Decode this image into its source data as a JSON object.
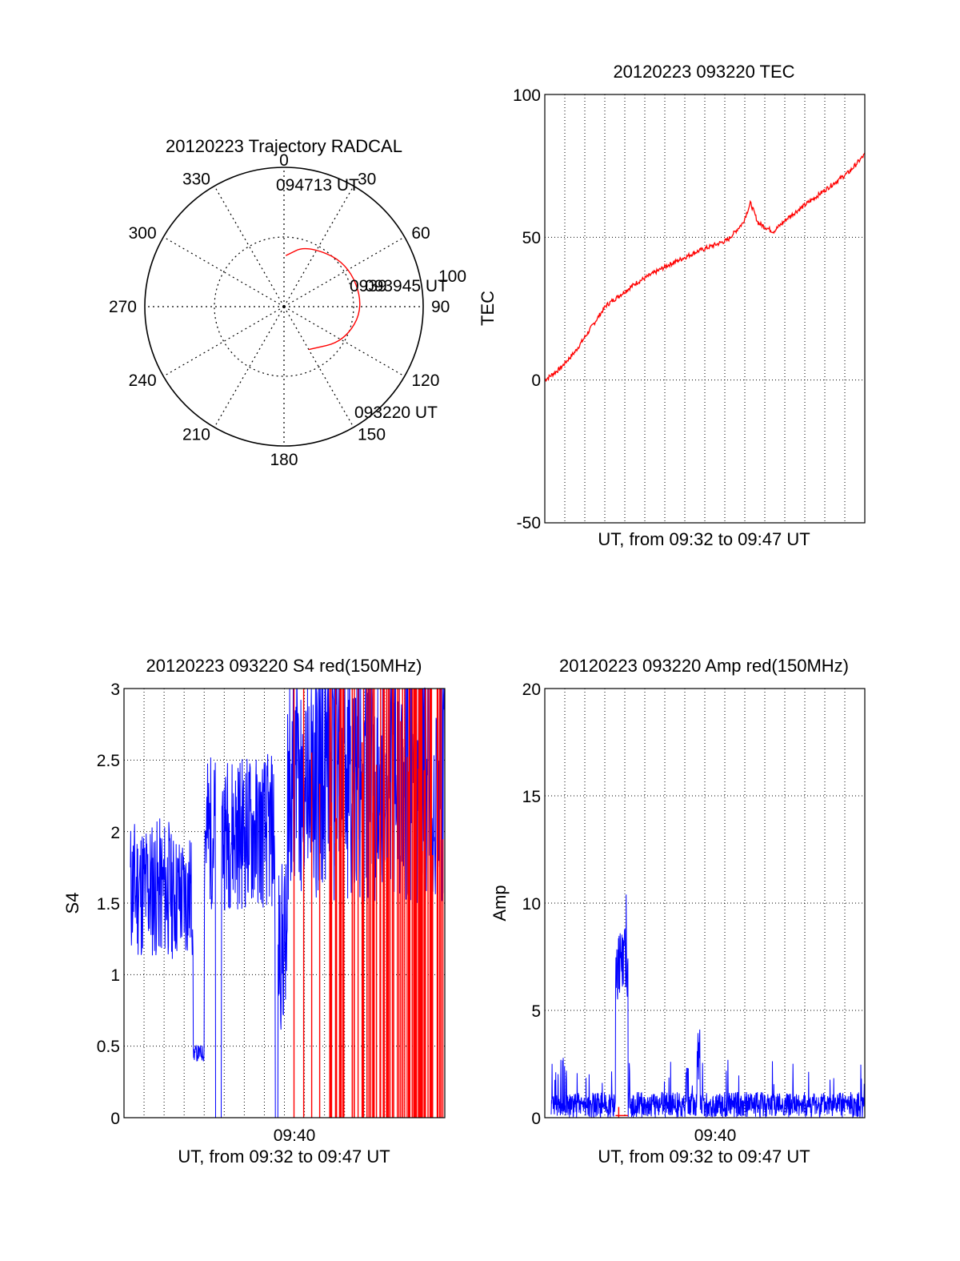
{
  "chart_data": [
    {
      "type": "polar",
      "title": "20120223 Trajectory RADCAL",
      "azimuth_labels": [
        "0",
        "30",
        "60",
        "90",
        "120",
        "150",
        "180",
        "210",
        "240",
        "270",
        "300",
        "330"
      ],
      "radial_labels": [
        "100"
      ],
      "series": [
        {
          "points": [
            {
              "az": 2,
              "el": 57
            },
            {
              "az": 20,
              "el": 48
            },
            {
              "az": 55,
              "el": 40
            },
            {
              "az": 90,
              "el": 38
            },
            {
              "az": 120,
              "el": 45
            },
            {
              "az": 150,
              "el": 58
            }
          ],
          "color": "#ff0000"
        }
      ],
      "annotations": [
        {
          "text": "094713 UT"
        },
        {
          "text": "093945 UT"
        },
        {
          "text": "093220 UT"
        }
      ]
    },
    {
      "type": "line",
      "title": "20120223 093220 TEC",
      "xlabel": "UT, from 09:32 to 09:47 UT",
      "ylabel": "TEC",
      "ylim": [
        -50,
        100
      ],
      "yticks": [
        "100",
        "50",
        "0",
        "-50"
      ],
      "xticks": [],
      "color": "#ff0000",
      "series": [
        {
          "x": [
            0,
            0.5,
            1,
            1.5,
            2,
            3,
            4,
            5,
            6,
            6.5,
            6.75,
            7,
            7.5,
            8,
            9,
            10,
            10.5
          ],
          "values": [
            0,
            4,
            10,
            18,
            26,
            34,
            40,
            45,
            49,
            55,
            62,
            55,
            52,
            57,
            65,
            73,
            79
          ]
        }
      ]
    },
    {
      "type": "line",
      "title": "20120223 093220 S4 red(150MHz)",
      "xlabel": "UT, from 09:32 to 09:47 UT",
      "ylabel": "S4",
      "ylim": [
        0,
        3
      ],
      "yticks": [
        "3",
        "2.5",
        "2",
        "1.5",
        "1",
        "0.5",
        "0"
      ],
      "xticks": [
        "09:40"
      ],
      "series": [
        {
          "name": "blue",
          "color": "#0000ff"
        },
        {
          "name": "red",
          "color": "#ff0000"
        }
      ]
    },
    {
      "type": "line",
      "title": "20120223 093220 Amp red(150MHz)",
      "xlabel": "UT, from 09:32 to 09:47 UT",
      "ylabel": "Amp",
      "ylim": [
        0,
        20
      ],
      "yticks": [
        "20",
        "15",
        "10",
        "5",
        "0"
      ],
      "xticks": [
        "09:40"
      ],
      "series": [
        {
          "name": "blue",
          "color": "#0000ff"
        },
        {
          "name": "red",
          "color": "#ff0000"
        }
      ]
    }
  ]
}
